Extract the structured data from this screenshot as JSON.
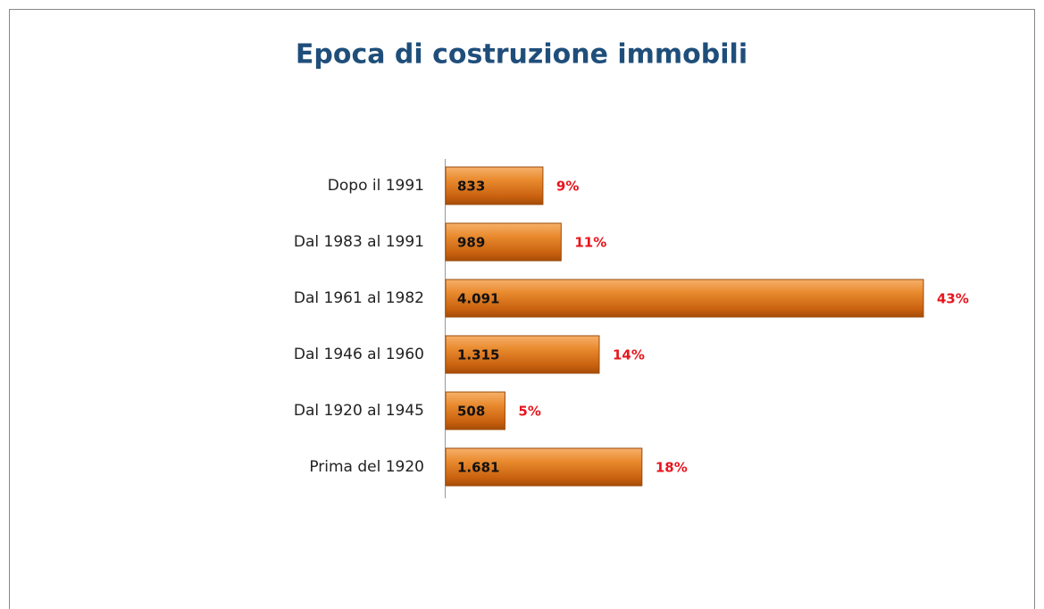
{
  "chart_data": {
    "type": "hbar",
    "title": "Epoca di costruzione immobili",
    "categories": [
      "Dopo il 1991",
      "Dal 1983 al 1991",
      "Dal 1961 al 1982",
      "Dal 1946 al 1960",
      "Dal 1920 al 1945",
      "Prima del 1920"
    ],
    "values": [
      833,
      989,
      4091,
      1315,
      508,
      1681
    ],
    "value_labels": [
      "833",
      "989",
      "4.091",
      "1.315",
      "508",
      "1.681"
    ],
    "percent_values": [
      9,
      11,
      43,
      14,
      5,
      18
    ],
    "percent_labels": [
      "9%",
      "11%",
      "43%",
      "14%",
      "5%",
      "18%"
    ],
    "color": "#e07a1f"
  }
}
